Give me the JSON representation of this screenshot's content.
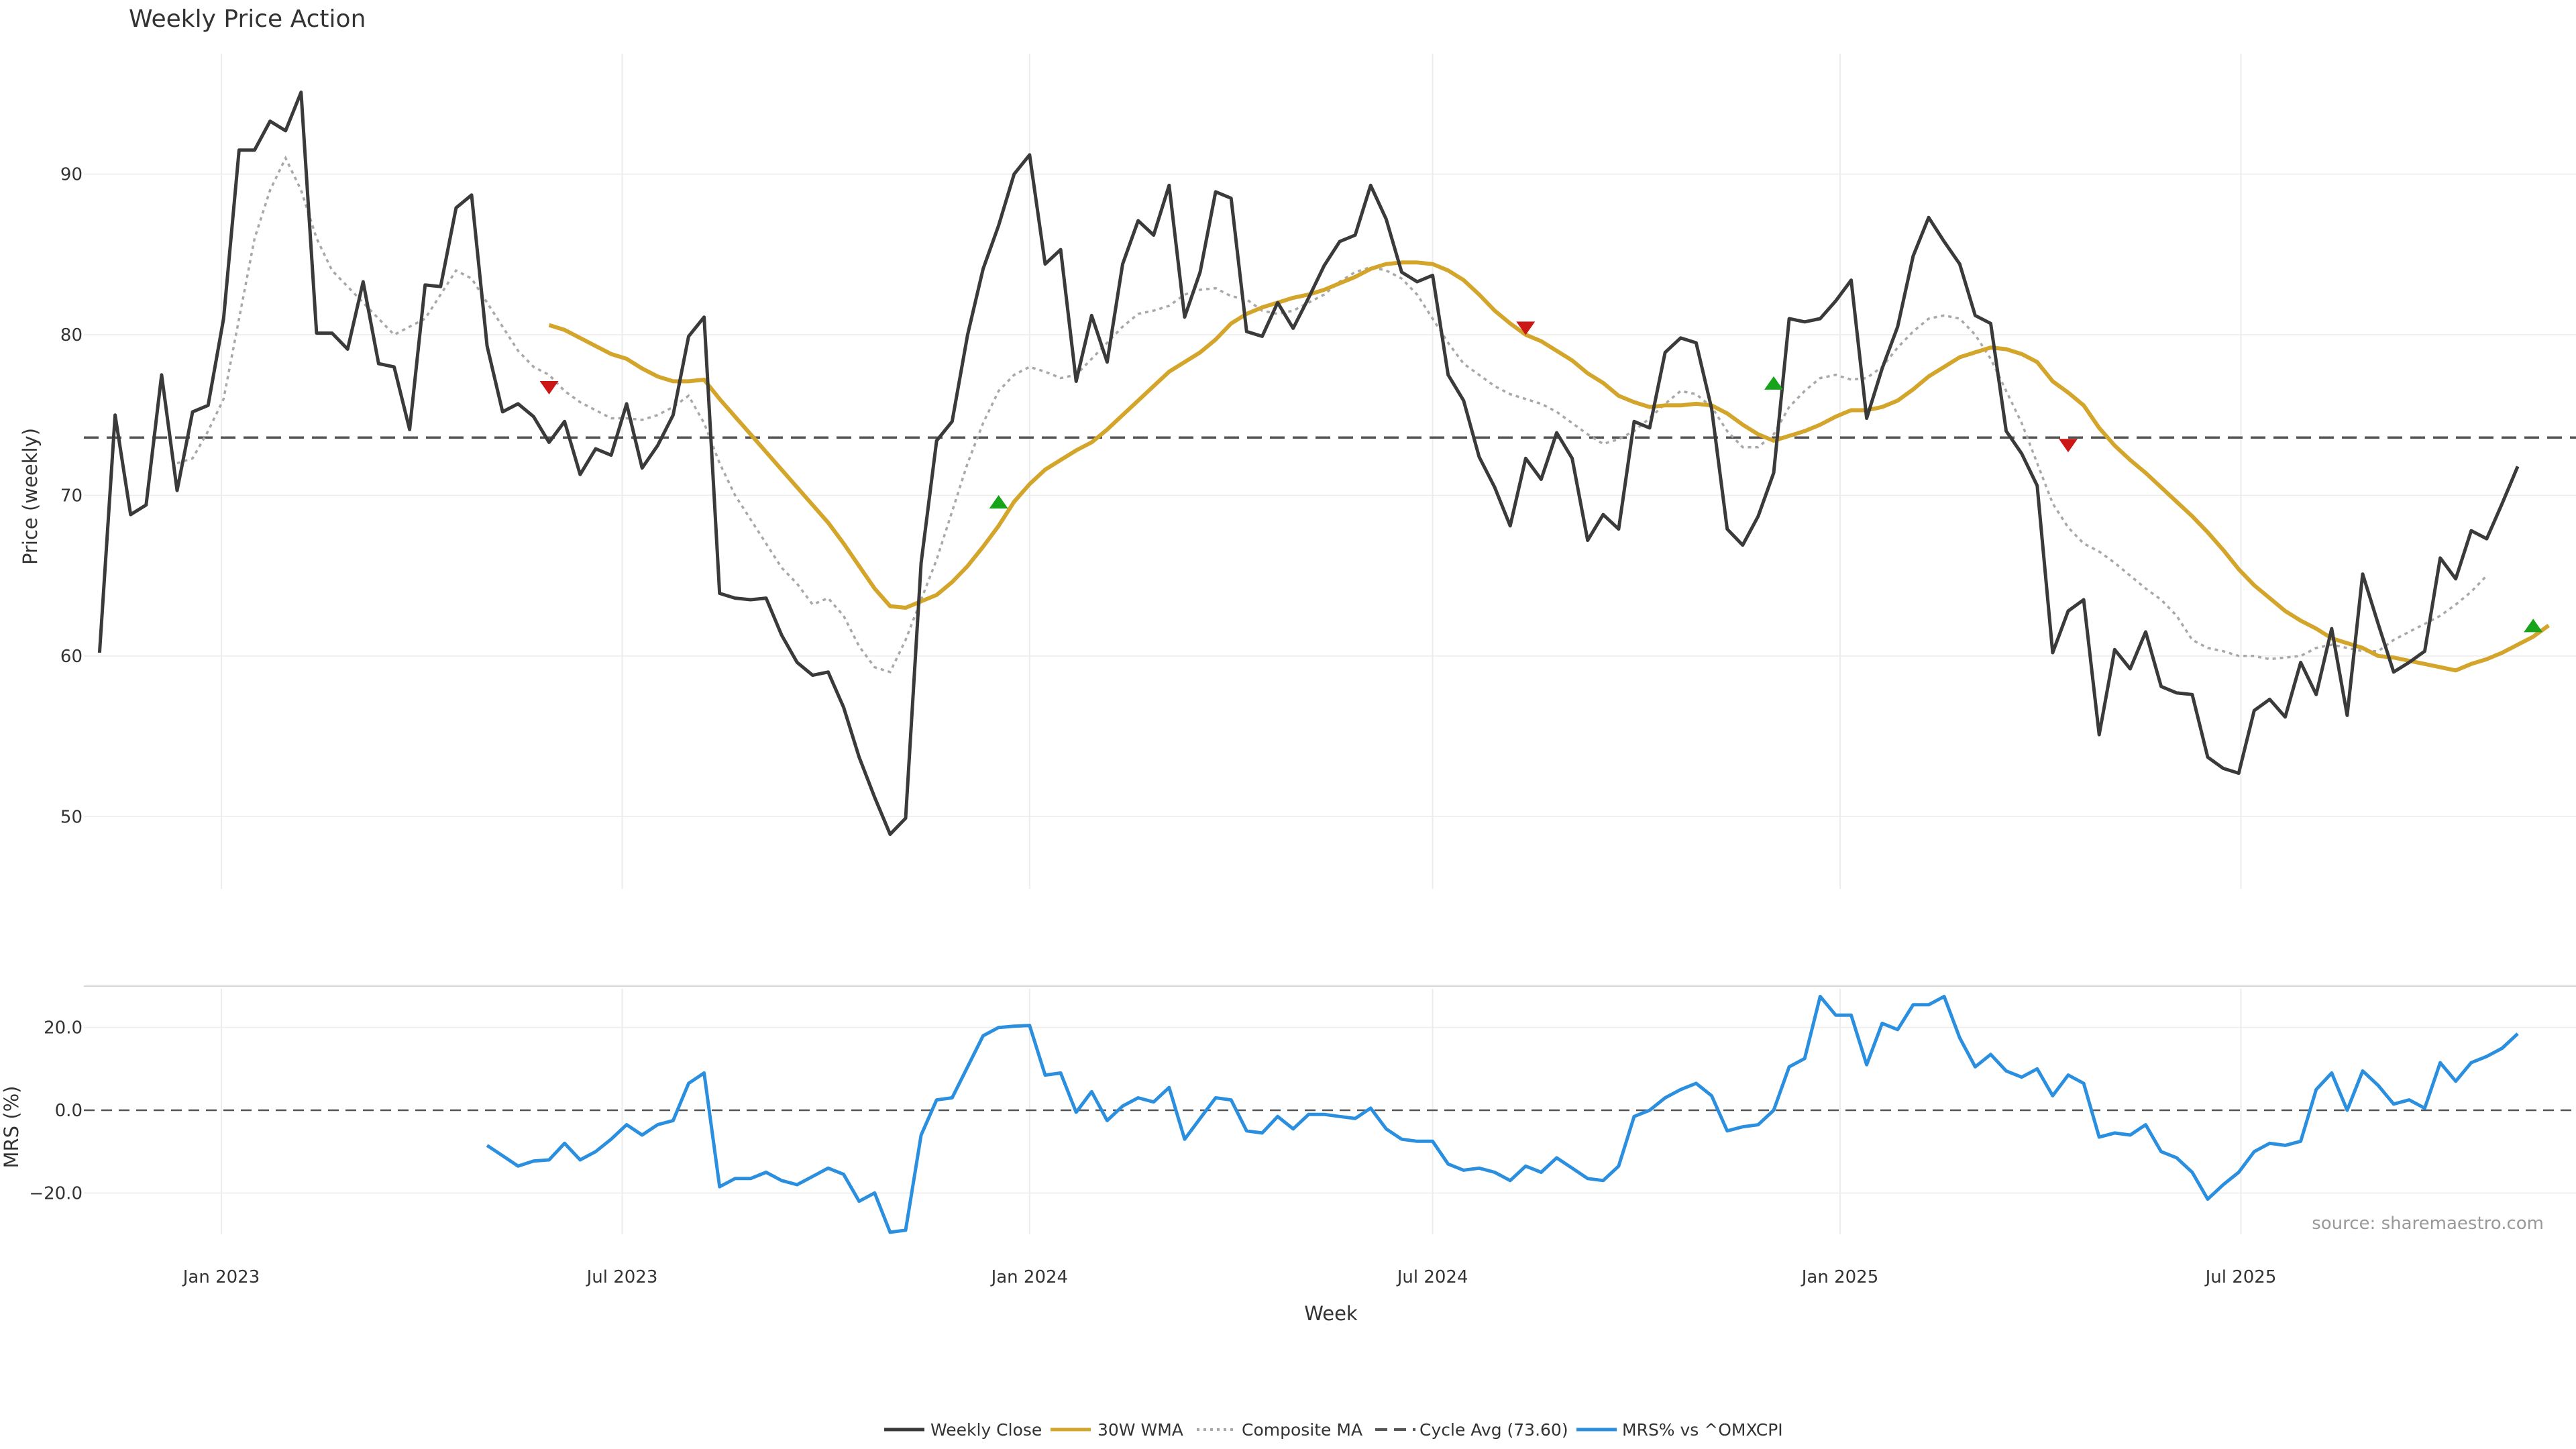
{
  "colors": {
    "close": "#3a3a3a",
    "wma": "#d4a52b",
    "composite": "#a8a8a8",
    "cycle": "#555555",
    "mrs": "#2b8fe0",
    "up": "#17a31a",
    "down": "#cc1717",
    "grid": "#ececec"
  },
  "legend": {
    "close": "Weekly Close",
    "wma": "30W WMA",
    "composite": "Composite MA",
    "cycle": "Cycle Avg (73.60)",
    "mrs": "MRS% vs ^OMXCPI"
  },
  "chart_data": [
    {
      "type": "line",
      "title": "Weekly Price Action",
      "xlabel": "Week",
      "ylabel": "Price (weekly)",
      "ylim": [
        45.5,
        97.5
      ],
      "yticks": [
        50,
        60,
        70,
        80,
        90
      ],
      "x_start": "2022-11-07",
      "x_step_weeks": 1,
      "xticks": [
        {
          "date": "2023-01-01",
          "label": "Jan 2023"
        },
        {
          "date": "2023-07-01",
          "label": "Jul 2023"
        },
        {
          "date": "2024-01-01",
          "label": "Jan 2024"
        },
        {
          "date": "2024-07-01",
          "label": "Jul 2024"
        },
        {
          "date": "2025-01-01",
          "label": "Jan 2025"
        },
        {
          "date": "2025-07-01",
          "label": "Jul 2025"
        }
      ],
      "cycle_avg": 73.6,
      "series": [
        {
          "name": "Weekly Close",
          "values": [
            60.2,
            75.0,
            68.8,
            69.4,
            77.5,
            70.3,
            75.2,
            75.6,
            81.0,
            91.5,
            91.5,
            93.3,
            92.7,
            95.1,
            80.1,
            80.1,
            79.1,
            83.3,
            78.2,
            78.0,
            74.1,
            83.1,
            83.0,
            87.9,
            88.7,
            79.3,
            75.2,
            75.7,
            74.9,
            73.3,
            74.6,
            71.3,
            72.9,
            72.5,
            75.7,
            71.7,
            73.1,
            75.0,
            79.9,
            81.1,
            63.9,
            63.6,
            63.5,
            63.6,
            61.3,
            59.6,
            58.8,
            59.0,
            56.8,
            53.7,
            51.2,
            48.9,
            49.9,
            65.8,
            73.4,
            74.6,
            80.0,
            84.1,
            86.8,
            90.0,
            91.2,
            84.4,
            85.3,
            77.1,
            81.2,
            78.3,
            84.4,
            87.1,
            86.2,
            89.3,
            81.1,
            83.9,
            88.9,
            88.5,
            80.2,
            79.9,
            82.0,
            80.4,
            82.3,
            84.3,
            85.8,
            86.2,
            89.3,
            87.2,
            83.9,
            83.3,
            83.7,
            77.5,
            75.9,
            72.4,
            70.5,
            68.1,
            72.3,
            71.0,
            73.9,
            72.3,
            67.2,
            68.8,
            67.9,
            74.6,
            74.2,
            78.9,
            79.8,
            79.5,
            75.4,
            67.9,
            66.9,
            68.7,
            71.4,
            81.0,
            80.8,
            81.0,
            82.1,
            83.4,
            74.8,
            77.9,
            80.5,
            84.9,
            87.3,
            85.8,
            84.4,
            81.2,
            80.7,
            74.0,
            72.6,
            70.6,
            60.2,
            62.8,
            63.5,
            55.1,
            60.4,
            59.2,
            61.5,
            58.1,
            57.7,
            57.6,
            53.7,
            53.0,
            52.7,
            56.6,
            57.3,
            56.2,
            59.6,
            57.6,
            61.7,
            56.3,
            65.1,
            62.0,
            59.0,
            59.6,
            60.3,
            66.1,
            64.8,
            67.8,
            67.3,
            69.5,
            71.8
          ]
        },
        {
          "name": "30W WMA",
          "values": [
            null,
            null,
            null,
            null,
            null,
            null,
            null,
            null,
            null,
            null,
            null,
            null,
            null,
            null,
            null,
            null,
            null,
            null,
            null,
            null,
            null,
            null,
            null,
            null,
            null,
            null,
            null,
            null,
            null,
            80.6,
            80.3,
            79.8,
            79.3,
            78.8,
            78.5,
            77.9,
            77.4,
            77.1,
            77.1,
            77.2,
            76.0,
            74.9,
            73.8,
            72.7,
            71.6,
            70.5,
            69.4,
            68.3,
            67.0,
            65.6,
            64.2,
            63.1,
            63.0,
            63.4,
            63.8,
            64.6,
            65.6,
            66.8,
            68.1,
            69.6,
            70.7,
            71.6,
            72.2,
            72.8,
            73.3,
            74.1,
            75.0,
            75.9,
            76.8,
            77.7,
            78.3,
            78.9,
            79.7,
            80.7,
            81.3,
            81.7,
            82.0,
            82.3,
            82.5,
            82.8,
            83.2,
            83.6,
            84.1,
            84.4,
            84.5,
            84.5,
            84.4,
            84.0,
            83.4,
            82.5,
            81.5,
            80.7,
            80.0,
            79.6,
            79.0,
            78.4,
            77.6,
            77.0,
            76.2,
            75.8,
            75.5,
            75.6,
            75.6,
            75.7,
            75.6,
            75.1,
            74.4,
            73.8,
            73.4,
            73.7,
            74.0,
            74.4,
            74.9,
            75.3,
            75.3,
            75.5,
            75.9,
            76.6,
            77.4,
            78.0,
            78.6,
            78.9,
            79.2,
            79.1,
            78.8,
            78.3,
            77.1,
            76.4,
            75.6,
            74.2,
            73.1,
            72.2,
            71.4,
            70.5,
            69.6,
            68.7,
            67.7,
            66.6,
            65.4,
            64.4,
            63.6,
            62.8,
            62.2,
            61.7,
            61.1,
            60.8,
            60.5,
            60.0,
            59.9,
            59.7,
            59.5,
            59.3,
            59.1,
            59.5,
            59.8,
            60.2,
            60.7,
            61.2,
            61.9
          ]
        },
        {
          "name": "Composite MA",
          "values": [
            null,
            null,
            null,
            null,
            null,
            72.0,
            72.3,
            74.0,
            76.0,
            81.0,
            86.0,
            89.0,
            91.0,
            89.0,
            86.0,
            84.0,
            83.0,
            82.0,
            81.0,
            80.0,
            80.5,
            81.0,
            82.5,
            84.0,
            83.5,
            82.0,
            80.5,
            79.0,
            78.0,
            77.5,
            76.5,
            75.8,
            75.3,
            74.8,
            74.8,
            74.7,
            75.0,
            75.5,
            76.2,
            74.5,
            72.0,
            70.0,
            68.5,
            67.0,
            65.5,
            64.5,
            63.2,
            63.6,
            62.5,
            60.6,
            59.3,
            59.0,
            61.0,
            63.5,
            66.0,
            69.0,
            72.0,
            74.5,
            76.5,
            77.5,
            78.0,
            77.7,
            77.3,
            77.5,
            78.5,
            79.5,
            80.5,
            81.3,
            81.5,
            81.8,
            82.5,
            82.8,
            82.9,
            82.4,
            82.2,
            81.5,
            81.3,
            81.5,
            82.0,
            82.5,
            83.3,
            83.9,
            84.2,
            84.0,
            83.5,
            82.5,
            81.0,
            79.5,
            78.2,
            77.5,
            76.8,
            76.3,
            76.0,
            75.7,
            75.2,
            74.5,
            73.8,
            73.2,
            73.5,
            74.0,
            74.8,
            75.7,
            76.5,
            76.3,
            75.5,
            74.0,
            73.0,
            73.0,
            73.8,
            75.5,
            76.5,
            77.3,
            77.5,
            77.2,
            77.3,
            78.0,
            79.2,
            80.2,
            81.0,
            81.2,
            81.0,
            80.0,
            78.5,
            76.5,
            74.5,
            72.0,
            69.5,
            68.0,
            67.0,
            66.5,
            65.8,
            65.0,
            64.2,
            63.5,
            62.5,
            61.0,
            60.5,
            60.3,
            60.0,
            60.0,
            59.8,
            59.9,
            60.0,
            60.5,
            60.7,
            60.5,
            60.3,
            60.3,
            61.0,
            61.5,
            62.0,
            62.5,
            63.2,
            64.0,
            65.0
          ]
        }
      ],
      "signals": [
        {
          "type": "down",
          "date": "2023-05-29",
          "y": 76.7
        },
        {
          "type": "up",
          "date": "2023-12-18",
          "y": 69.6
        },
        {
          "type": "down",
          "date": "2024-08-12",
          "y": 80.4
        },
        {
          "type": "up",
          "date": "2024-12-02",
          "y": 77.0
        },
        {
          "type": "down",
          "date": "2025-04-14",
          "y": 73.1
        },
        {
          "type": "up",
          "date": "2025-11-10",
          "y": 61.9
        }
      ]
    },
    {
      "type": "line",
      "xlabel": "Week",
      "ylabel": "MRS (%)",
      "ylim": [
        -30,
        30
      ],
      "yticks": [
        20,
        0,
        -20
      ],
      "ytick_labels": [
        "20.0",
        "0.0",
        "−20.0"
      ],
      "zero_line": 0,
      "source": "source: sharemaestro.com",
      "x_start": "2023-05-01",
      "x_step_weeks": 1,
      "series": [
        {
          "name": "MRS% vs ^OMXCPI",
          "values": [
            -8.5,
            -11.0,
            -13.5,
            -12.3,
            -12.0,
            -8.0,
            -12.0,
            -10.0,
            -7.0,
            -3.5,
            -6.0,
            -3.5,
            -2.5,
            6.5,
            9.0,
            -18.5,
            -16.5,
            -16.5,
            -15.0,
            -17.0,
            -18.0,
            -16.0,
            -14.0,
            -15.5,
            -22.0,
            -20.0,
            -29.5,
            -29.0,
            -6.0,
            2.5,
            3.0,
            10.5,
            18.0,
            20.0,
            20.3,
            20.5,
            8.5,
            9.0,
            -0.5,
            4.5,
            -2.5,
            1.0,
            3.0,
            2.0,
            5.5,
            -7.0,
            -2.0,
            3.0,
            2.5,
            -5.0,
            -5.5,
            -1.5,
            -4.5,
            -1.0,
            -1.0,
            -1.5,
            -2.0,
            0.5,
            -4.5,
            -7.0,
            -7.5,
            -7.5,
            -13.0,
            -14.5,
            -14.0,
            -15.0,
            -17.0,
            -13.5,
            -15.0,
            -11.5,
            -14.0,
            -16.5,
            -17.0,
            -13.5,
            -1.5,
            0.0,
            3.0,
            5.0,
            6.5,
            3.5,
            -5.0,
            -4.0,
            -3.5,
            0.0,
            10.5,
            12.5,
            27.5,
            23.0,
            23.0,
            11.0,
            21.0,
            19.5,
            25.5,
            25.5,
            27.5,
            17.5,
            10.5,
            13.5,
            9.5,
            8.0,
            10.0,
            3.5,
            8.5,
            6.5,
            -6.5,
            -5.5,
            -6.0,
            -3.5,
            -10.0,
            -11.5,
            -15.0,
            -21.5,
            -18.0,
            -15.0,
            -10.0,
            -8.0,
            -8.5,
            -7.5,
            5.0,
            9.0,
            0.0,
            9.5,
            6.0,
            1.5,
            2.5,
            0.5,
            11.5,
            7.0,
            11.5,
            13.0,
            15.0,
            18.5
          ]
        }
      ]
    }
  ]
}
